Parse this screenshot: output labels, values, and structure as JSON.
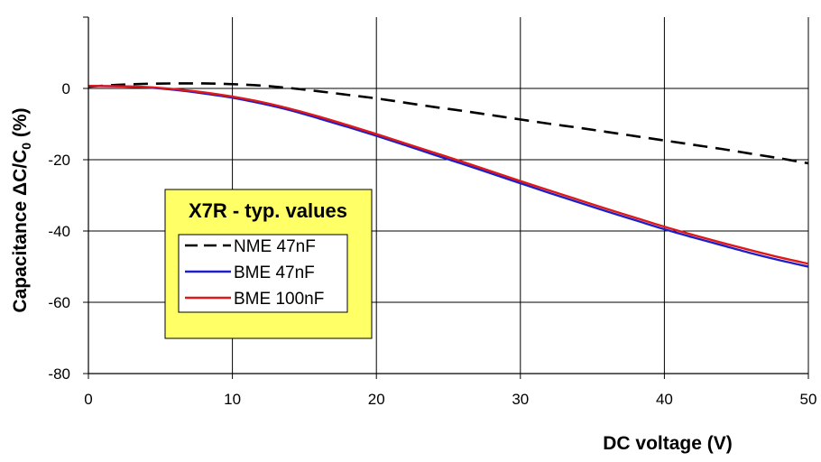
{
  "chart_data": {
    "type": "line",
    "xlabel": "DC voltage (V)",
    "ylabel_main": "Capacitance ΔC/C",
    "ylabel_sub": "0",
    "ylabel_tail": " (%)",
    "xlim": [
      0,
      50
    ],
    "ylim": [
      -80,
      20
    ],
    "x_ticks": [
      0,
      10,
      20,
      30,
      40,
      50
    ],
    "y_ticks": [
      0,
      -20,
      -40,
      -60,
      -80
    ],
    "grid": true,
    "legend": {
      "title": "X7R - typ. values",
      "placement": "lower-left",
      "background": "#ffff66"
    },
    "series": [
      {
        "name": "NME 47nF",
        "color": "#000000",
        "dash": true,
        "x": [
          0,
          2,
          4,
          6,
          8,
          10,
          12,
          14,
          16,
          18,
          20,
          22,
          24,
          26,
          28,
          30,
          32,
          34,
          36,
          38,
          40,
          42,
          44,
          46,
          48,
          50
        ],
        "y": [
          0.5,
          1.0,
          1.3,
          1.4,
          1.4,
          1.2,
          0.8,
          0.1,
          -0.8,
          -1.8,
          -2.8,
          -4.0,
          -5.2,
          -6.3,
          -7.5,
          -8.7,
          -9.9,
          -11.0,
          -12.2,
          -13.4,
          -14.6,
          -15.8,
          -17.0,
          -18.3,
          -19.6,
          -21.0
        ]
      },
      {
        "name": "BME 47nF",
        "color": "#1f1fc8",
        "dash": false,
        "x": [
          0,
          2,
          4,
          6,
          8,
          10,
          12,
          14,
          16,
          18,
          20,
          22,
          24,
          26,
          28,
          30,
          32,
          34,
          36,
          38,
          40,
          42,
          44,
          46,
          48,
          50
        ],
        "y": [
          0.7,
          0.6,
          0.3,
          -0.4,
          -1.4,
          -2.6,
          -4.2,
          -6.1,
          -8.4,
          -10.8,
          -13.3,
          -15.9,
          -18.6,
          -21.2,
          -23.9,
          -26.6,
          -29.3,
          -31.9,
          -34.5,
          -37.0,
          -39.5,
          -41.8,
          -44.0,
          -46.2,
          -48.2,
          -50.0
        ]
      },
      {
        "name": "BME 100nF",
        "color": "#e01818",
        "dash": false,
        "x": [
          0,
          2,
          4,
          6,
          8,
          10,
          12,
          14,
          16,
          18,
          20,
          22,
          24,
          26,
          28,
          30,
          32,
          34,
          36,
          38,
          40,
          42,
          44,
          46,
          48,
          50
        ],
        "y": [
          0.7,
          0.6,
          0.4,
          -0.2,
          -1.1,
          -2.3,
          -3.8,
          -5.7,
          -7.9,
          -10.3,
          -12.8,
          -15.4,
          -18.0,
          -20.6,
          -23.3,
          -26.0,
          -28.6,
          -31.2,
          -33.8,
          -36.3,
          -38.8,
          -41.1,
          -43.3,
          -45.4,
          -47.4,
          -49.2
        ]
      }
    ]
  }
}
